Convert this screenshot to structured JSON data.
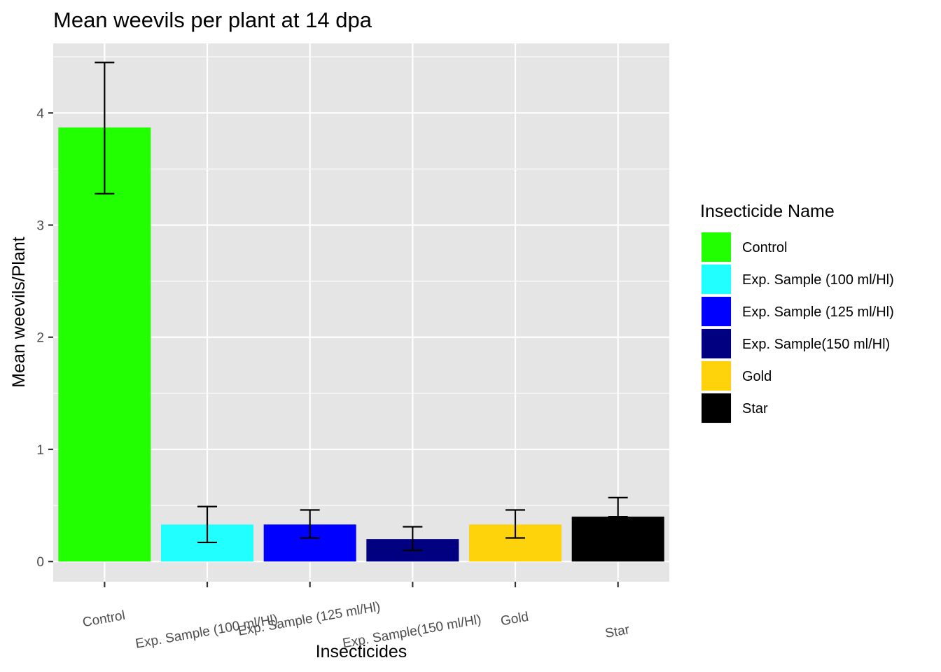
{
  "chart_data": {
    "type": "bar",
    "title": "Mean weevils per plant at 14 dpa",
    "xlabel": "Insecticides",
    "ylabel": "Mean weevils/Plant",
    "ylim": [
      -0.18,
      4.62
    ],
    "yticks": [
      0,
      1,
      2,
      3,
      4
    ],
    "grid": true,
    "categories": [
      "Control",
      "Exp. Sample (100 ml/Hl)",
      "Exp. Sample (125 ml/Hl)",
      "Exp. Sample(150 ml/Hl)",
      "Gold",
      "Star"
    ],
    "values": [
      3.87,
      0.33,
      0.33,
      0.2,
      0.33,
      0.4
    ],
    "error_low": [
      3.28,
      0.17,
      0.21,
      0.1,
      0.21,
      0.4
    ],
    "error_high": [
      4.45,
      0.49,
      0.46,
      0.31,
      0.46,
      0.57
    ],
    "colors": [
      "#22FF00",
      "#22FFFF",
      "#0000FF",
      "#000080",
      "#FFD30B",
      "#000000"
    ],
    "legend": {
      "title": "Insecticide Name",
      "position": "right",
      "entries": [
        "Control",
        "Exp. Sample (100 ml/Hl)",
        "Exp. Sample (125 ml/Hl)",
        "Exp. Sample(150 ml/Hl)",
        "Gold",
        "Star"
      ]
    }
  }
}
